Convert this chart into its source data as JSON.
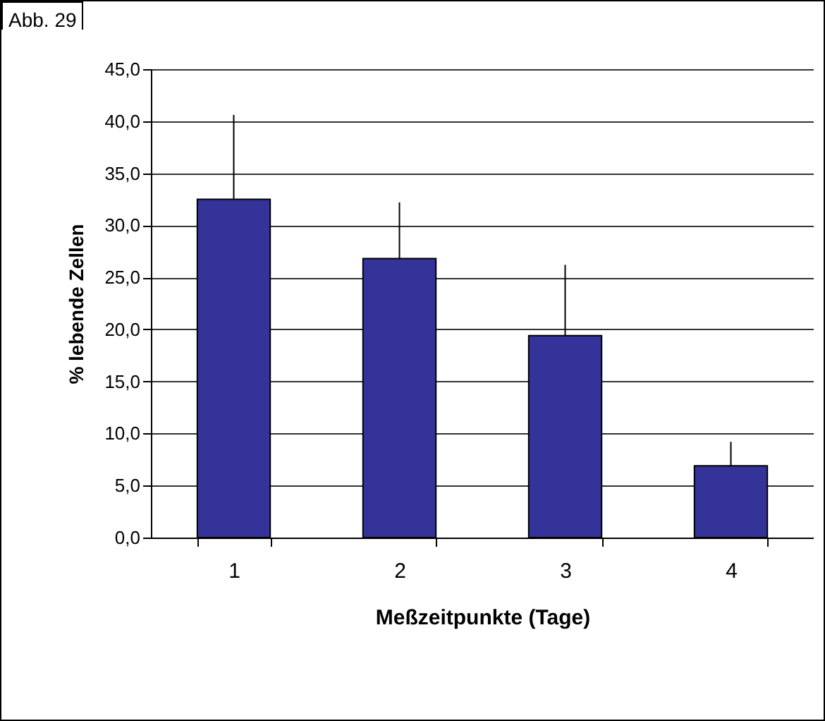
{
  "chart_data": {
    "type": "bar",
    "title": "Abb. 29",
    "xlabel": "Meßzeitpunkte (Tage)",
    "ylabel": "% lebende Zellen",
    "categories": [
      "1",
      "2",
      "3",
      "4"
    ],
    "values": [
      32.5,
      26.8,
      19.4,
      6.9
    ],
    "errors": [
      [
        32.5,
        40.6
      ],
      [
        26.8,
        32.2
      ],
      [
        19.4,
        26.2
      ],
      [
        6.9,
        9.2
      ]
    ],
    "color": "#333399",
    "ylim": [
      0,
      45
    ],
    "yticks": [
      {
        "value": 0,
        "label": "0,0"
      },
      {
        "value": 5,
        "label": "5,0"
      },
      {
        "value": 10,
        "label": "10,0"
      },
      {
        "value": 15,
        "label": "15,0"
      },
      {
        "value": 20,
        "label": "20,0"
      },
      {
        "value": 25,
        "label": "25,0"
      },
      {
        "value": 30,
        "label": "30,0"
      },
      {
        "value": 35,
        "label": "35,0"
      },
      {
        "value": 40,
        "label": "40,0"
      },
      {
        "value": 45,
        "label": "45,0"
      }
    ],
    "grid": "y"
  }
}
